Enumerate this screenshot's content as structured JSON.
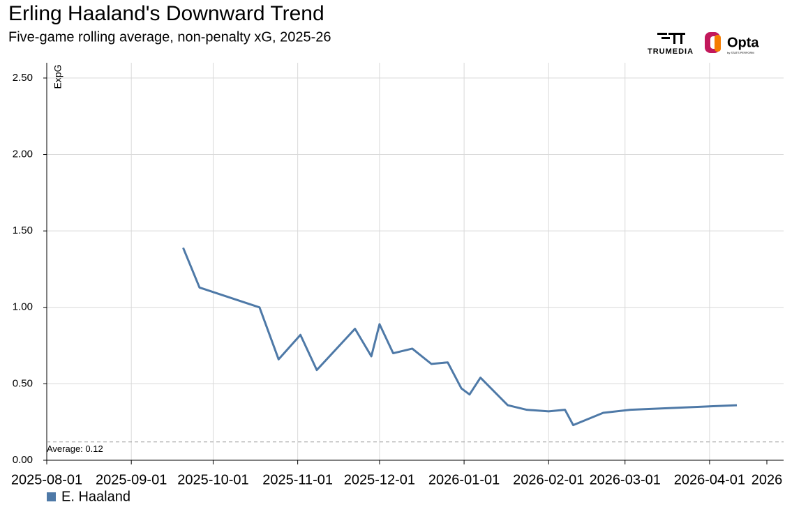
{
  "chart_data": {
    "type": "line",
    "title": "Erling Haaland's Downward Trend",
    "subtitle": "Five-game rolling average, non-penalty xG, 2025-26",
    "logos": [
      "TRUMEDIA",
      "Opta",
      "by STATS PERFORM"
    ],
    "y_label": "ExpG",
    "x": [
      "2025-09-20",
      "2025-09-26",
      "2025-10-18",
      "2025-10-25",
      "2025-11-02",
      "2025-11-08",
      "2025-11-22",
      "2025-11-28",
      "2025-12-01",
      "2025-12-06",
      "2025-12-13",
      "2025-12-20",
      "2025-12-26",
      "2025-12-31",
      "2026-01-03",
      "2026-01-07",
      "2026-01-17",
      "2026-01-24",
      "2026-02-01",
      "2026-02-07",
      "2026-02-10",
      "2026-02-21",
      "2026-03-03",
      "2026-04-11"
    ],
    "series": [
      {
        "name": "E. Haaland",
        "color": "#4e79a7",
        "values": [
          1.39,
          1.13,
          1.0,
          0.66,
          0.82,
          0.59,
          0.86,
          0.68,
          0.89,
          0.7,
          0.73,
          0.63,
          0.64,
          0.47,
          0.43,
          0.54,
          0.36,
          0.33,
          0.32,
          0.33,
          0.23,
          0.31,
          0.33,
          0.36
        ]
      }
    ],
    "average": {
      "value": 0.12,
      "label": "Average: 0.12"
    },
    "xlim": [
      "2025-08-01",
      "2026-04-22"
    ],
    "xticks": [
      "2025-08-01",
      "2025-09-01",
      "2025-10-01",
      "2025-11-01",
      "2025-12-01",
      "2026-01-01",
      "2026-02-01",
      "2026-03-01",
      "2026-04-01",
      {
        "value": "2026-04-22",
        "label": "2026"
      }
    ],
    "ylim": [
      0,
      2.6
    ],
    "yticks": [
      {
        "value": 0,
        "label": "0.00"
      },
      {
        "value": 0.5,
        "label": "0.50"
      },
      {
        "value": 1,
        "label": "1.00"
      },
      {
        "value": 1.5,
        "label": "1.50"
      },
      {
        "value": 2,
        "label": "2.00"
      },
      {
        "value": 2.5,
        "label": "2.50"
      }
    ],
    "grid": true
  }
}
